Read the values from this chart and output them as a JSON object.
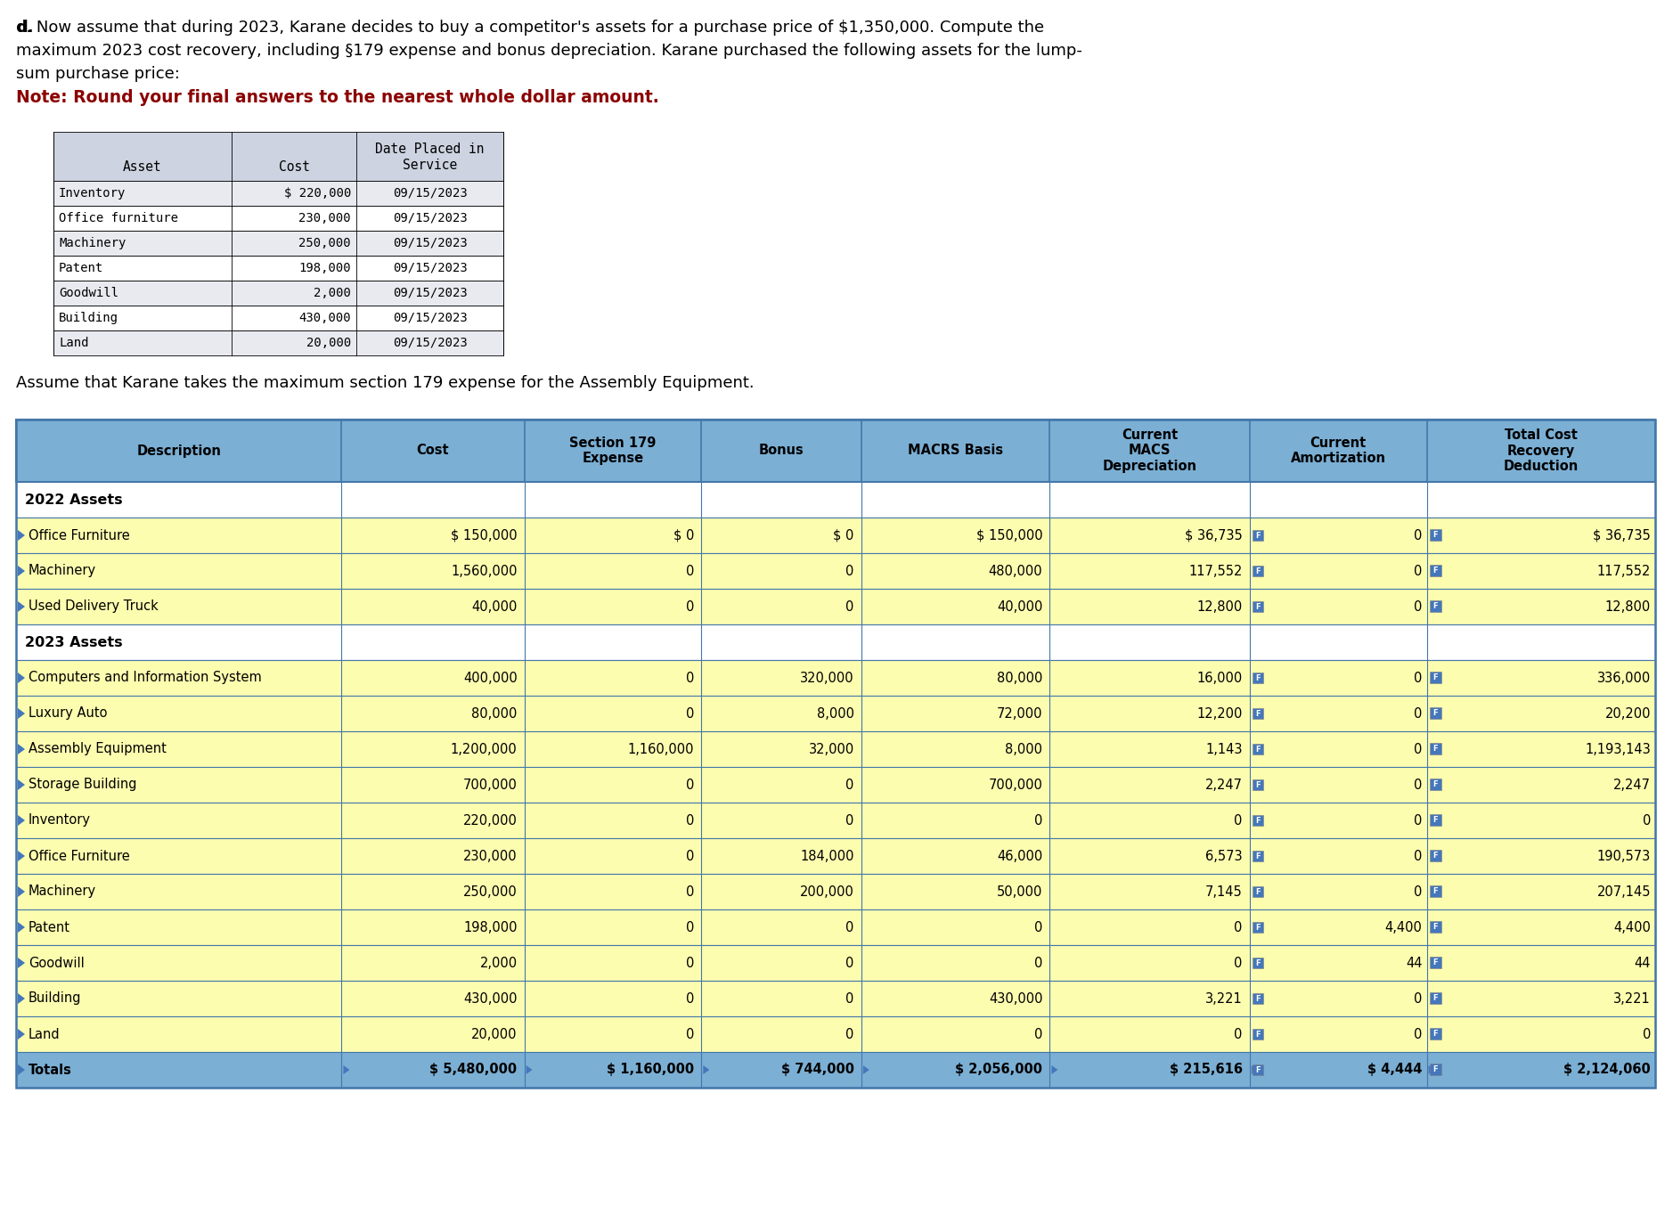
{
  "title_line1": "d. Now assume that during 2023, Karane decides to buy a competitor's assets for a purchase price of $1,350,000. Compute the",
  "title_line2": "maximum 2023 cost recovery, including §179 expense and bonus depreciation. Karane purchased the following assets for the lump-",
  "title_line3": "sum purchase price:",
  "note_text": "Note: Round your final answers to the nearest whole dollar amount.",
  "assumption_text": "Assume that Karane takes the maximum section 179 expense for the Assembly Equipment.",
  "asset_table_rows": [
    [
      "Inventory",
      "$ 220,000",
      "09/15/2023"
    ],
    [
      "Office furniture",
      "230,000",
      "09/15/2023"
    ],
    [
      "Machinery",
      "250,000",
      "09/15/2023"
    ],
    [
      "Patent",
      "198,000",
      "09/15/2023"
    ],
    [
      "Goodwill",
      "2,000",
      "09/15/2023"
    ],
    [
      "Building",
      "430,000",
      "09/15/2023"
    ],
    [
      "Land",
      "20,000",
      "09/15/2023"
    ]
  ],
  "section_rows": [
    {
      "label": "2022 Assets",
      "is_section": true
    },
    {
      "label": "Office Furniture",
      "cost": "$ 150,000",
      "s179": "$ 0",
      "bonus": "$ 0",
      "macrs_basis": "$ 150,000",
      "macrs_dep": "$ 36,735",
      "amort": "0",
      "total": "$ 36,735",
      "is_section": false
    },
    {
      "label": "Machinery",
      "cost": "1,560,000",
      "s179": "0",
      "bonus": "0",
      "macrs_basis": "480,000",
      "macrs_dep": "117,552",
      "amort": "0",
      "total": "117,552",
      "is_section": false
    },
    {
      "label": "Used Delivery Truck",
      "cost": "40,000",
      "s179": "0",
      "bonus": "0",
      "macrs_basis": "40,000",
      "macrs_dep": "12,800",
      "amort": "0",
      "total": "12,800",
      "is_section": false
    },
    {
      "label": "2023 Assets",
      "is_section": true
    },
    {
      "label": "Computers and Information System",
      "cost": "400,000",
      "s179": "0",
      "bonus": "320,000",
      "macrs_basis": "80,000",
      "macrs_dep": "16,000",
      "amort": "0",
      "total": "336,000",
      "is_section": false
    },
    {
      "label": "Luxury Auto",
      "cost": "80,000",
      "s179": "0",
      "bonus": "8,000",
      "macrs_basis": "72,000",
      "macrs_dep": "12,200",
      "amort": "0",
      "total": "20,200",
      "is_section": false
    },
    {
      "label": "Assembly Equipment",
      "cost": "1,200,000",
      "s179": "1,160,000",
      "bonus": "32,000",
      "macrs_basis": "8,000",
      "macrs_dep": "1,143",
      "amort": "0",
      "total": "1,193,143",
      "is_section": false
    },
    {
      "label": "Storage Building",
      "cost": "700,000",
      "s179": "0",
      "bonus": "0",
      "macrs_basis": "700,000",
      "macrs_dep": "2,247",
      "amort": "0",
      "total": "2,247",
      "is_section": false
    },
    {
      "label": "Inventory",
      "cost": "220,000",
      "s179": "0",
      "bonus": "0",
      "macrs_basis": "0",
      "macrs_dep": "0",
      "amort": "0",
      "total": "0",
      "is_section": false
    },
    {
      "label": "Office Furniture",
      "cost": "230,000",
      "s179": "0",
      "bonus": "184,000",
      "macrs_basis": "46,000",
      "macrs_dep": "6,573",
      "amort": "0",
      "total": "190,573",
      "is_section": false
    },
    {
      "label": "Machinery",
      "cost": "250,000",
      "s179": "0",
      "bonus": "200,000",
      "macrs_basis": "50,000",
      "macrs_dep": "7,145",
      "amort": "0",
      "total": "207,145",
      "is_section": false
    },
    {
      "label": "Patent",
      "cost": "198,000",
      "s179": "0",
      "bonus": "0",
      "macrs_basis": "0",
      "macrs_dep": "0",
      "amort": "4,400",
      "total": "4,400",
      "is_section": false
    },
    {
      "label": "Goodwill",
      "cost": "2,000",
      "s179": "0",
      "bonus": "0",
      "macrs_basis": "0",
      "macrs_dep": "0",
      "amort": "44",
      "total": "44",
      "is_section": false
    },
    {
      "label": "Building",
      "cost": "430,000",
      "s179": "0",
      "bonus": "0",
      "macrs_basis": "430,000",
      "macrs_dep": "3,221",
      "amort": "0",
      "total": "3,221",
      "is_section": false
    },
    {
      "label": "Land",
      "cost": "20,000",
      "s179": "0",
      "bonus": "0",
      "macrs_basis": "0",
      "macrs_dep": "0",
      "amort": "0",
      "total": "0",
      "is_section": false
    },
    {
      "label": "Totals",
      "cost": "$ 5,480,000",
      "s179": "$ 1,160,000",
      "bonus": "$ 744,000",
      "macrs_basis": "$ 2,056,000",
      "macrs_dep": "$ 215,616",
      "amort": "$ 4,444",
      "total": "$ 2,124,060",
      "is_section": false,
      "is_total": true
    }
  ],
  "header_bg": "#7BAFD4",
  "row_bg_yellow": "#FDFDB0",
  "row_bg_white": "#FFFFFF",
  "section_bg": "#FFFFFF",
  "asset_header_bg": "#CDD3E0",
  "asset_row_bg_odd": "#E8EAF0",
  "asset_row_bg_even": "#FFFFFF",
  "border_color": "#4477AA",
  "text_color": "#000000",
  "note_color": "#8B0000"
}
